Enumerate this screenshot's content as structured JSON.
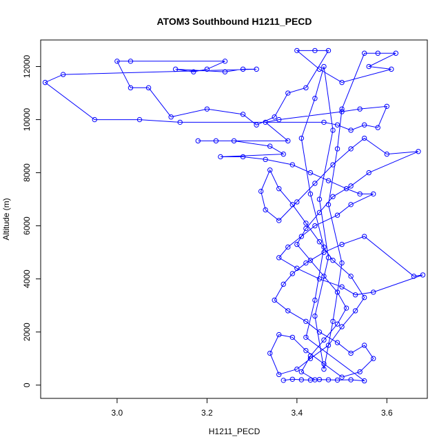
{
  "chart_data": {
    "type": "line",
    "title": "ATOM3 Southbound H1211_PECD",
    "xlabel": "H1211_PECD",
    "ylabel": "Altitude (m)",
    "xlim": [
      2.83,
      3.69
    ],
    "ylim": [
      -500,
      13000
    ],
    "x_ticks": [
      3.0,
      3.2,
      3.4,
      3.6
    ],
    "x_tick_labels": [
      "3.0",
      "3.2",
      "3.4",
      "3.6"
    ],
    "y_ticks": [
      0,
      2000,
      4000,
      6000,
      8000,
      10000,
      12000
    ],
    "y_tick_labels": [
      "0",
      "2000",
      "4000",
      "6000",
      "8000",
      "10000",
      "12000"
    ],
    "grid": false,
    "series": [
      {
        "color": "#0000ff",
        "marker": "open-circle",
        "points": [
          [
            3.37,
            180
          ],
          [
            3.39,
            220
          ],
          [
            3.41,
            200
          ],
          [
            3.43,
            190
          ],
          [
            3.45,
            210
          ],
          [
            3.47,
            200
          ],
          [
            3.49,
            190
          ],
          [
            3.52,
            200
          ],
          [
            3.55,
            160
          ],
          [
            3.42,
            1800
          ],
          [
            3.44,
            3200
          ],
          [
            3.46,
            5200
          ],
          [
            3.43,
            7200
          ],
          [
            3.41,
            9300
          ],
          [
            3.44,
            10800
          ],
          [
            3.46,
            12000
          ],
          [
            3.48,
            9600
          ],
          [
            3.45,
            7000
          ],
          [
            3.47,
            4800
          ],
          [
            3.44,
            2600
          ],
          [
            3.46,
            600
          ],
          [
            3.48,
            2400
          ],
          [
            3.5,
            4600
          ],
          [
            3.47,
            6800
          ],
          [
            3.49,
            8900
          ],
          [
            3.5,
            10400
          ],
          [
            3.55,
            12500
          ],
          [
            3.58,
            12500
          ],
          [
            3.62,
            12500
          ],
          [
            3.56,
            12000
          ],
          [
            3.61,
            11900
          ],
          [
            3.5,
            11400
          ],
          [
            3.45,
            11900
          ],
          [
            3.4,
            12600
          ],
          [
            3.44,
            12600
          ],
          [
            3.47,
            12600
          ],
          [
            3.42,
            11200
          ],
          [
            3.38,
            11000
          ],
          [
            3.35,
            10100
          ],
          [
            3.31,
            9800
          ],
          [
            3.28,
            10200
          ],
          [
            3.2,
            10400
          ],
          [
            3.12,
            10100
          ],
          [
            3.07,
            11200
          ],
          [
            3.03,
            11200
          ],
          [
            3.0,
            12200
          ],
          [
            3.03,
            12200
          ],
          [
            3.24,
            12200
          ],
          [
            3.2,
            11900
          ],
          [
            3.17,
            11800
          ],
          [
            3.13,
            11900
          ],
          [
            3.24,
            11800
          ],
          [
            3.28,
            11900
          ],
          [
            3.31,
            11900
          ],
          [
            2.88,
            11700
          ],
          [
            2.84,
            11400
          ],
          [
            2.95,
            10000
          ],
          [
            3.05,
            10000
          ],
          [
            3.14,
            9900
          ],
          [
            3.46,
            9900
          ],
          [
            3.49,
            9800
          ],
          [
            3.52,
            9600
          ],
          [
            3.55,
            9800
          ],
          [
            3.58,
            9700
          ],
          [
            3.6,
            10500
          ],
          [
            3.54,
            10400
          ],
          [
            3.5,
            10300
          ],
          [
            3.36,
            10000
          ],
          [
            3.33,
            9900
          ],
          [
            3.38,
            9200
          ],
          [
            3.18,
            9200
          ],
          [
            3.22,
            9200
          ],
          [
            3.26,
            9200
          ],
          [
            3.34,
            9000
          ],
          [
            3.37,
            8700
          ],
          [
            3.23,
            8600
          ],
          [
            3.28,
            8600
          ],
          [
            3.33,
            8500
          ],
          [
            3.39,
            8300
          ],
          [
            3.43,
            8000
          ],
          [
            3.47,
            7700
          ],
          [
            3.51,
            7400
          ],
          [
            3.54,
            7200
          ],
          [
            3.57,
            7200
          ],
          [
            3.52,
            6800
          ],
          [
            3.49,
            6400
          ],
          [
            3.44,
            6000
          ],
          [
            3.41,
            5600
          ],
          [
            3.38,
            5200
          ],
          [
            3.36,
            4800
          ],
          [
            3.4,
            4400
          ],
          [
            3.45,
            4000
          ],
          [
            3.5,
            3700
          ],
          [
            3.53,
            3400
          ],
          [
            3.57,
            3500
          ],
          [
            3.68,
            4150
          ],
          [
            3.66,
            4100
          ],
          [
            3.55,
            5600
          ],
          [
            3.5,
            5300
          ],
          [
            3.46,
            5000
          ],
          [
            3.42,
            4600
          ],
          [
            3.39,
            4200
          ],
          [
            3.37,
            3800
          ],
          [
            3.35,
            3200
          ],
          [
            3.38,
            2800
          ],
          [
            3.42,
            2400
          ],
          [
            3.45,
            2000
          ],
          [
            3.49,
            1600
          ],
          [
            3.52,
            1200
          ],
          [
            3.55,
            1500
          ],
          [
            3.57,
            1000
          ],
          [
            3.54,
            500
          ],
          [
            3.5,
            300
          ],
          [
            3.46,
            800
          ],
          [
            3.42,
            1300
          ],
          [
            3.39,
            1800
          ],
          [
            3.36,
            1900
          ],
          [
            3.34,
            1200
          ],
          [
            3.36,
            400
          ],
          [
            3.4,
            600
          ],
          [
            3.43,
            1000
          ],
          [
            3.47,
            1500
          ],
          [
            3.5,
            2200
          ],
          [
            3.53,
            2800
          ],
          [
            3.55,
            3300
          ],
          [
            3.52,
            4100
          ],
          [
            3.48,
            4700
          ],
          [
            3.45,
            5400
          ],
          [
            3.42,
            6100
          ],
          [
            3.39,
            6800
          ],
          [
            3.36,
            7400
          ],
          [
            3.34,
            8100
          ],
          [
            3.32,
            7300
          ],
          [
            3.33,
            6600
          ],
          [
            3.36,
            6200
          ],
          [
            3.4,
            6900
          ],
          [
            3.44,
            7600
          ],
          [
            3.48,
            8300
          ],
          [
            3.52,
            8900
          ],
          [
            3.55,
            9300
          ],
          [
            3.6,
            8700
          ],
          [
            3.67,
            8800
          ],
          [
            3.56,
            8000
          ],
          [
            3.52,
            7500
          ],
          [
            3.48,
            7100
          ],
          [
            3.45,
            6500
          ],
          [
            3.42,
            5900
          ],
          [
            3.4,
            5300
          ],
          [
            3.43,
            4700
          ],
          [
            3.46,
            4100
          ],
          [
            3.49,
            3500
          ],
          [
            3.51,
            2900
          ],
          [
            3.49,
            2300
          ],
          [
            3.46,
            1700
          ],
          [
            3.43,
            1100
          ],
          [
            3.41,
            500
          ],
          [
            3.44,
            200
          ]
        ]
      }
    ]
  }
}
